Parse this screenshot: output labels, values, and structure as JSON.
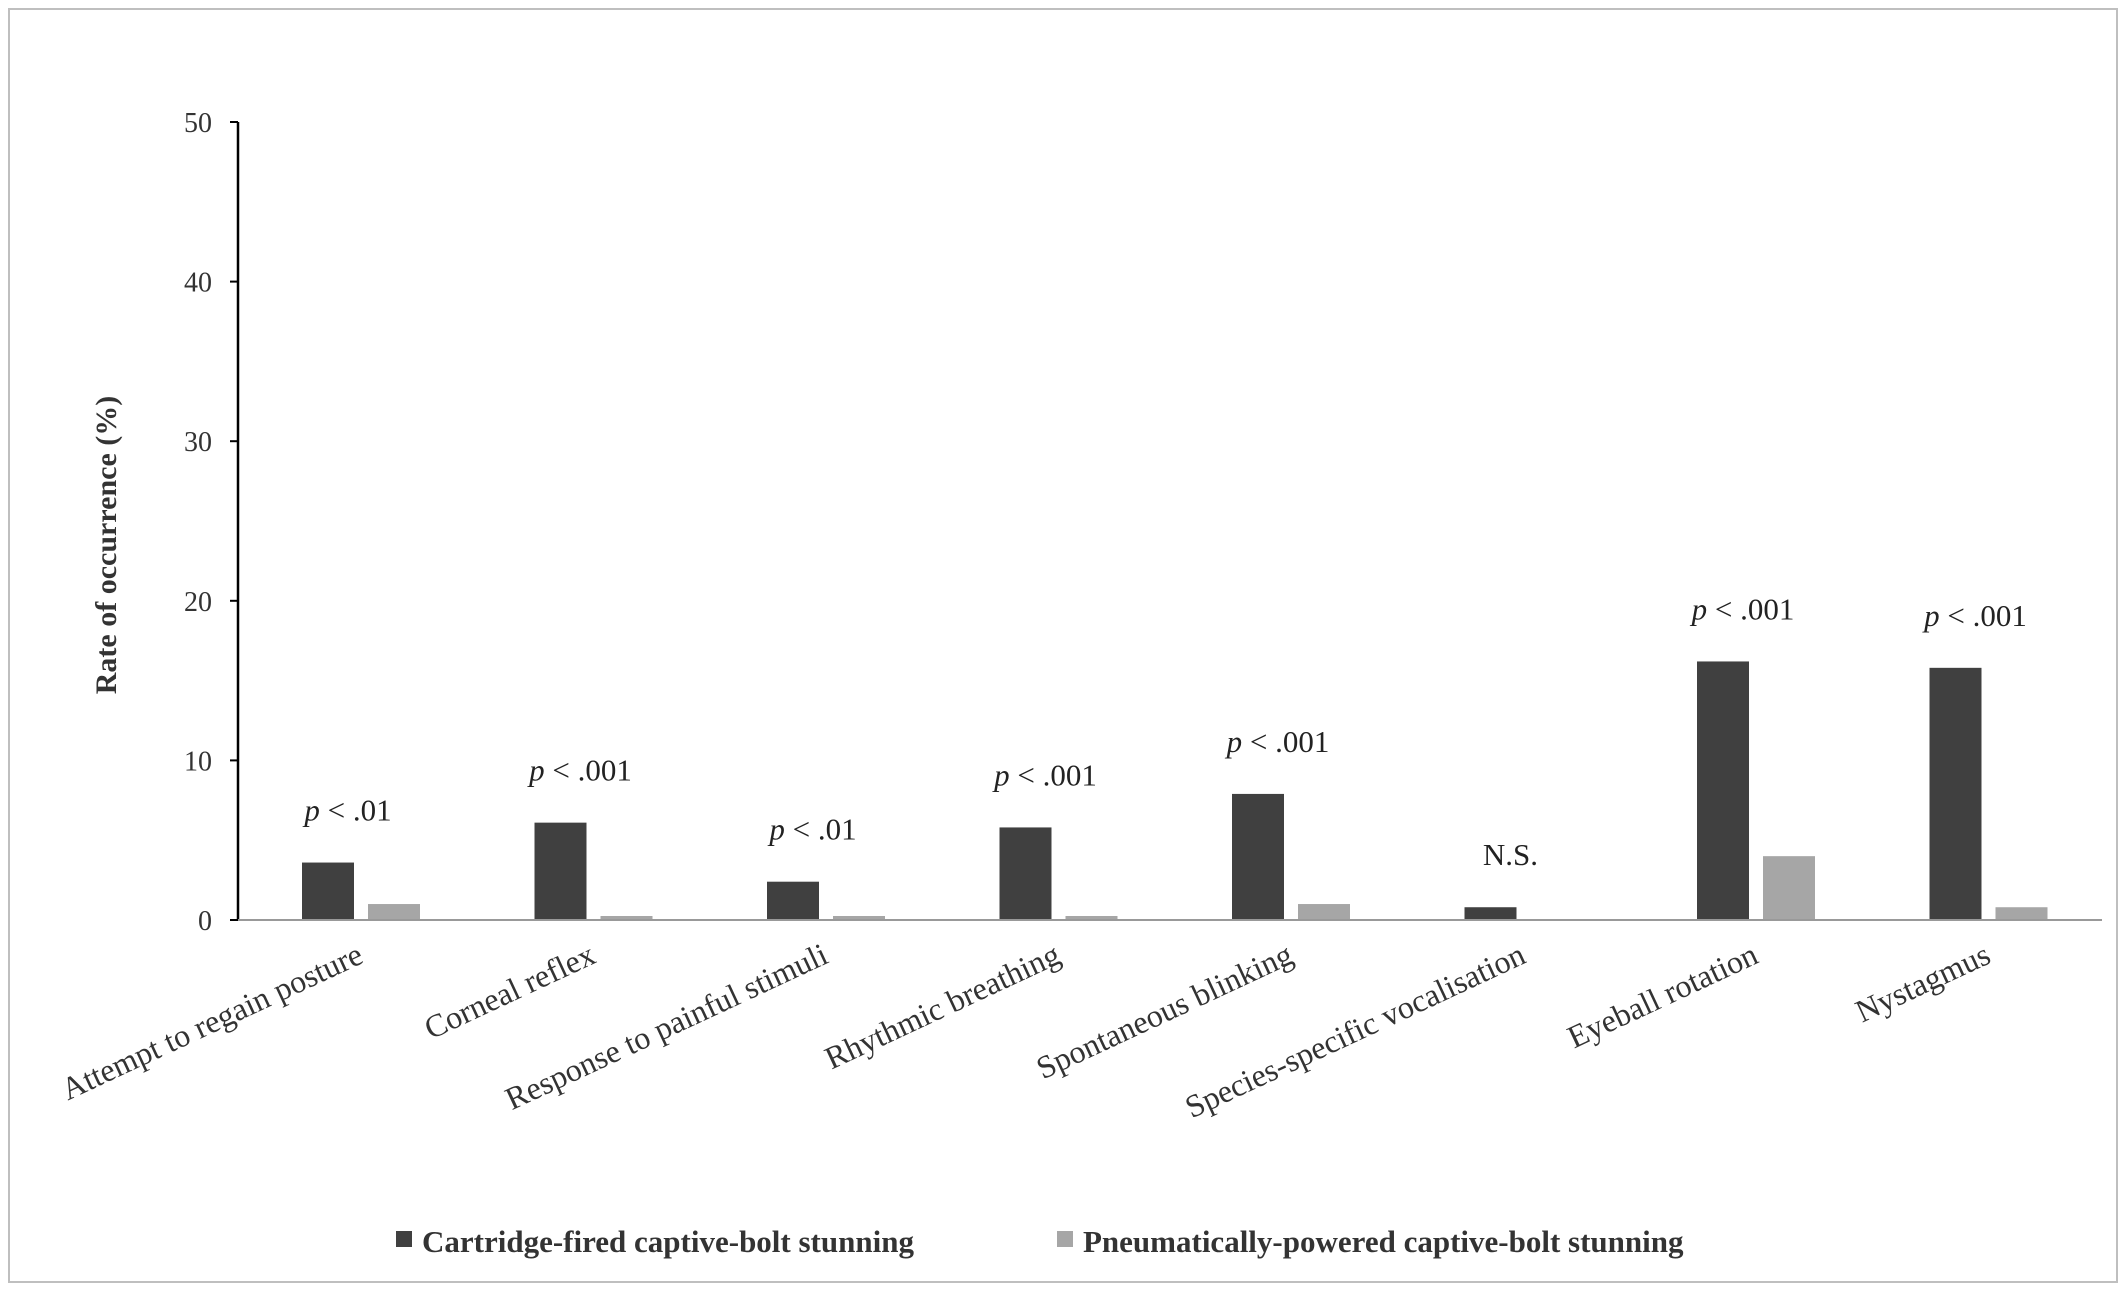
{
  "chart_data": {
    "type": "bar",
    "title": "",
    "xlabel": "",
    "ylabel": "Rate of occurrence (%)",
    "ylim": [
      0,
      50
    ],
    "yticks": [
      0,
      10,
      20,
      30,
      40,
      50
    ],
    "grid": false,
    "legend_position": "bottom",
    "categories": [
      "Attempt to regain posture",
      "Corneal reflex",
      "Response to painful stimuli",
      "Rhythmic breathing",
      "Spontaneous blinking",
      "Species-specific vocalisation",
      "Eyeball rotation",
      "Nystagmus"
    ],
    "series": [
      {
        "name": "Cartridge-fired captive-bolt stunning",
        "color": "#404040",
        "values": [
          3.6,
          6.1,
          2.4,
          5.8,
          7.9,
          0.8,
          16.2,
          15.8
        ]
      },
      {
        "name": "Pneumatically-powered captive-bolt stunning",
        "color": "#a6a6a6",
        "values": [
          1.0,
          0.25,
          0.25,
          0.25,
          1.0,
          0.0,
          4.0,
          0.8
        ]
      }
    ],
    "annotations": [
      {
        "prefix": "p",
        "text": " < .01"
      },
      {
        "prefix": "p",
        "text": " < .001"
      },
      {
        "prefix": "p",
        "text": " < .01"
      },
      {
        "prefix": "p",
        "text": " < .001"
      },
      {
        "prefix": "p",
        "text": " < .001"
      },
      {
        "prefix": "",
        "text": "N.S."
      },
      {
        "prefix": "p",
        "text": " < .001"
      },
      {
        "prefix": "p",
        "text": " < .001"
      }
    ]
  }
}
